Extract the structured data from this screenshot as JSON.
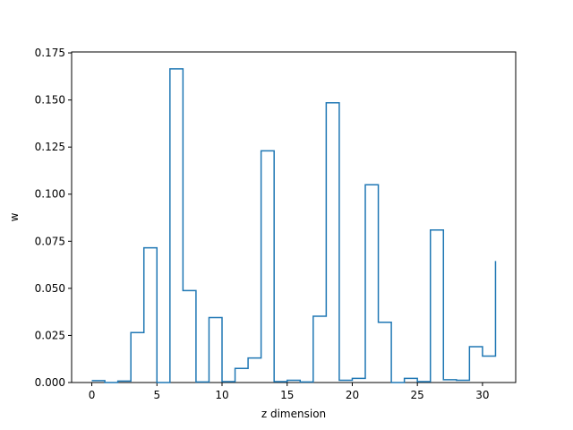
{
  "chart_data": {
    "type": "line",
    "drawstyle": "steps-post",
    "xlabel": "z dimension",
    "ylabel": "w",
    "xlim": [
      -1.55,
      32.55
    ],
    "ylim": [
      0,
      0.1755
    ],
    "xticks": [
      0,
      5,
      10,
      15,
      20,
      25,
      30
    ],
    "yticks": [
      "0.000",
      "0.025",
      "0.050",
      "0.075",
      "0.100",
      "0.125",
      "0.150",
      "0.175"
    ],
    "grid": false,
    "color": "#1f77b4",
    "x": [
      0,
      1,
      2,
      3,
      4,
      5,
      6,
      7,
      8,
      9,
      10,
      11,
      12,
      13,
      14,
      15,
      16,
      17,
      18,
      19,
      20,
      21,
      22,
      23,
      24,
      25,
      26,
      27,
      28,
      29,
      30,
      31
    ],
    "values": [
      0.001,
      0.0,
      0.0008,
      0.0265,
      0.0715,
      0.0,
      0.1665,
      0.0488,
      0.0003,
      0.0345,
      0.0005,
      0.0075,
      0.013,
      0.123,
      0.0005,
      0.0012,
      0.0003,
      0.0352,
      0.1485,
      0.0012,
      0.0022,
      0.105,
      0.032,
      0.0,
      0.0022,
      0.0005,
      0.081,
      0.0015,
      0.0012,
      0.019,
      0.014,
      0.0645
    ]
  }
}
